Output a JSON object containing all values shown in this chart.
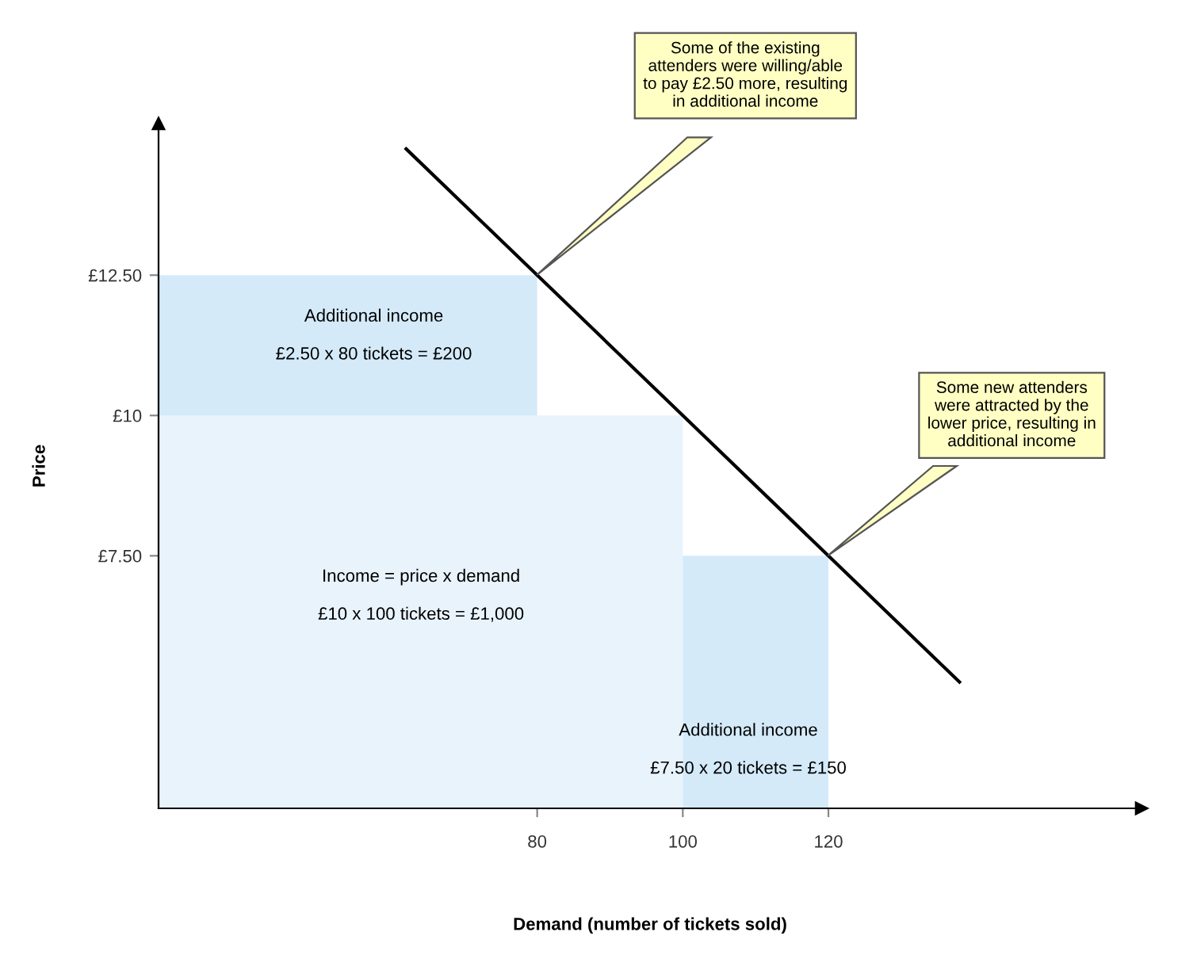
{
  "chart_data": {
    "type": "area",
    "xlabel": "Demand (number of tickets sold)",
    "ylabel": "Price",
    "xlim": [
      28,
      163
    ],
    "ylim": [
      3.0,
      15.2
    ],
    "xticks": [
      80,
      100,
      120
    ],
    "yticks": [
      {
        "value": 7.5,
        "label": "£7.50"
      },
      {
        "value": 10,
        "label": "£10"
      },
      {
        "value": 12.5,
        "label": "£12.50"
      }
    ],
    "series": [
      {
        "color": "#d4eaf9",
        "x": [
          28,
          80
        ],
        "values": [
          12.5,
          12.5
        ]
      },
      {
        "color": "#e8f3fc",
        "x": [
          28,
          100
        ],
        "values": [
          10,
          10
        ]
      },
      {
        "color": "#d4eaf9",
        "x": [
          100,
          120
        ],
        "values": [
          7.5,
          7.5
        ]
      },
      {
        "type": "line",
        "color": "#000000",
        "x": [
          62,
          138
        ],
        "values": [
          14.75,
          5.25
        ]
      }
    ],
    "annotations": [
      "Additional income\n\n£2.50 x 80 tickets = £200",
      "Income = price x demand\n\n£10 x 100 tickets = £1,000",
      "Additional income\n\n£7.50 x 20 tickets = £150",
      "Some of the existing\nattenders were willing/able\nto pay £2.50 more, resulting\nin additional income",
      "Some new attenders\nwere attracted by the\nlower price, resulting in\nadditional income"
    ],
    "grid": false,
    "legend": false
  }
}
